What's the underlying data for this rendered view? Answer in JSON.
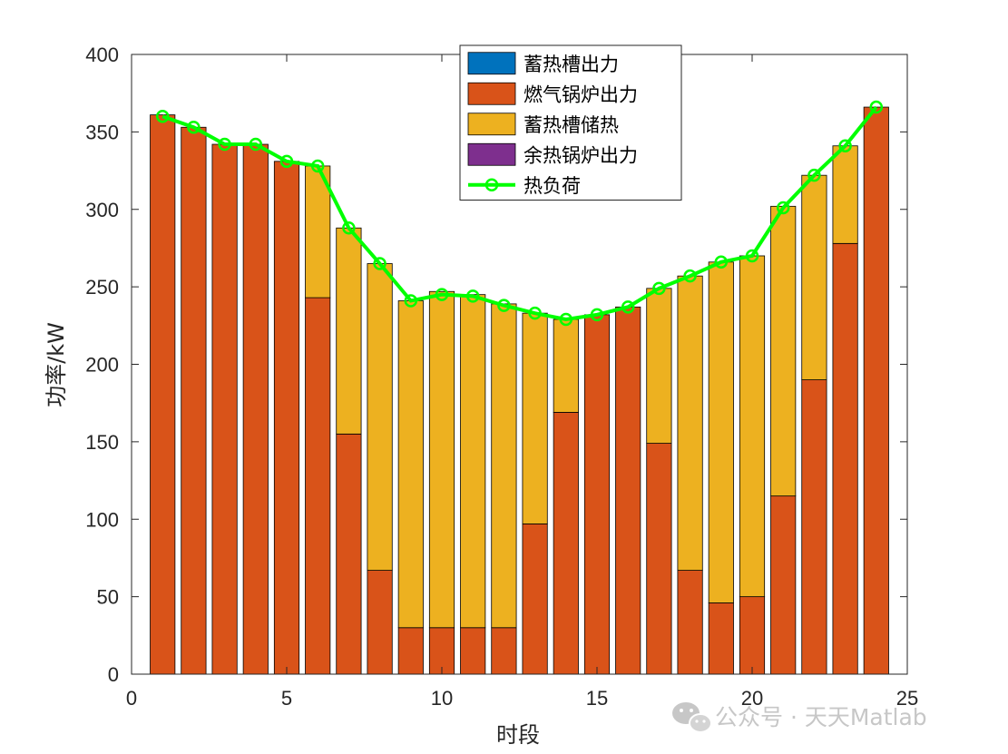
{
  "watermark": {
    "text": "公众号 · 天天Matlab",
    "icon": "wechat-icon"
  },
  "chart_data": {
    "type": "bar",
    "stacked": true,
    "xlabel": "时段",
    "ylabel": "功率/kW",
    "xlim": [
      0,
      25
    ],
    "ylim": [
      0,
      400
    ],
    "xticks": [
      0,
      5,
      10,
      15,
      20,
      25
    ],
    "yticks": [
      0,
      50,
      100,
      150,
      200,
      250,
      300,
      350,
      400
    ],
    "grid": false,
    "legend_position": "top-center",
    "x": [
      1,
      2,
      3,
      4,
      5,
      6,
      7,
      8,
      9,
      10,
      11,
      12,
      13,
      14,
      15,
      16,
      17,
      18,
      19,
      20,
      21,
      22,
      23,
      24
    ],
    "series": [
      {
        "name": "蓄热槽出力",
        "kind": "bar",
        "color": "#0072BD",
        "values": [
          0,
          0,
          0,
          0,
          0,
          0,
          0,
          0,
          0,
          0,
          0,
          0,
          0,
          0,
          0,
          0,
          0,
          0,
          0,
          0,
          0,
          0,
          0,
          0
        ]
      },
      {
        "name": "燃气锅炉出力",
        "kind": "bar",
        "color": "#D95319",
        "values": [
          361,
          353,
          342,
          342,
          331,
          243,
          155,
          67,
          30,
          30,
          30,
          30,
          97,
          169,
          232,
          237,
          149,
          67,
          46,
          50,
          115,
          190,
          278,
          366
        ]
      },
      {
        "name": "蓄热槽储热",
        "kind": "bar",
        "color": "#EDB120",
        "values": [
          0,
          0,
          0,
          0,
          0,
          85,
          133,
          198,
          211,
          217,
          215,
          209,
          136,
          60,
          0,
          0,
          100,
          190,
          220,
          220,
          187,
          132,
          63,
          0
        ]
      },
      {
        "name": "余热锅炉出力",
        "kind": "bar",
        "color": "#7E2F8E",
        "values": [
          0,
          0,
          0,
          0,
          0,
          0,
          0,
          0,
          0,
          0,
          0,
          0,
          0,
          0,
          0,
          0,
          0,
          0,
          0,
          0,
          0,
          0,
          0,
          0
        ]
      },
      {
        "name": "热负荷",
        "kind": "line",
        "color": "#00FF00",
        "values": [
          360,
          353,
          342,
          342,
          331,
          328,
          288,
          265,
          241,
          245,
          244,
          238,
          233,
          229,
          232,
          237,
          249,
          257,
          266,
          270,
          301,
          322,
          341,
          366
        ]
      }
    ]
  }
}
